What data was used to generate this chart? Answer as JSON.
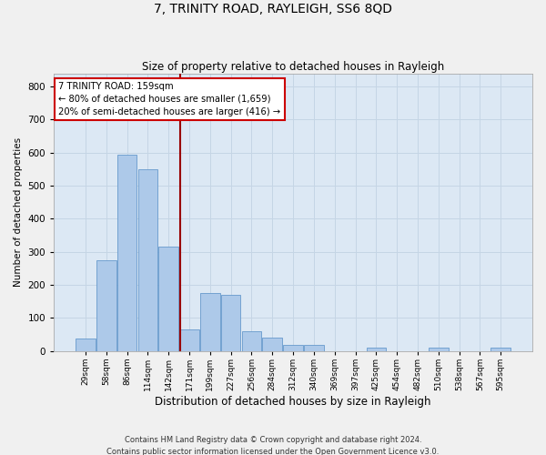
{
  "title": "7, TRINITY ROAD, RAYLEIGH, SS6 8QD",
  "subtitle": "Size of property relative to detached houses in Rayleigh",
  "xlabel": "Distribution of detached houses by size in Rayleigh",
  "ylabel": "Number of detached properties",
  "footer_line1": "Contains HM Land Registry data © Crown copyright and database right 2024.",
  "footer_line2": "Contains public sector information licensed under the Open Government Licence v3.0.",
  "bar_labels": [
    "29sqm",
    "58sqm",
    "86sqm",
    "114sqm",
    "142sqm",
    "171sqm",
    "199sqm",
    "227sqm",
    "256sqm",
    "284sqm",
    "312sqm",
    "340sqm",
    "369sqm",
    "397sqm",
    "425sqm",
    "454sqm",
    "482sqm",
    "510sqm",
    "538sqm",
    "567sqm",
    "595sqm"
  ],
  "bar_values": [
    38,
    275,
    595,
    550,
    315,
    65,
    175,
    170,
    60,
    40,
    18,
    18,
    0,
    0,
    10,
    0,
    0,
    10,
    0,
    0,
    10
  ],
  "bar_color": "#adc9e9",
  "bar_edge_color": "#6699cc",
  "vline_x": 4.58,
  "vline_color": "#990000",
  "annotation_title": "7 TRINITY ROAD: 159sqm",
  "annotation_line1": "← 80% of detached houses are smaller (1,659)",
  "annotation_line2": "20% of semi-detached houses are larger (416) →",
  "annotation_box_facecolor": "#ffffff",
  "annotation_box_edgecolor": "#cc0000",
  "grid_color": "#c5d5e5",
  "bg_color": "#dce8f4",
  "fig_bg_color": "#f0f0f0",
  "ylim": [
    0,
    840
  ],
  "yticks": [
    0,
    100,
    200,
    300,
    400,
    500,
    600,
    700,
    800
  ]
}
